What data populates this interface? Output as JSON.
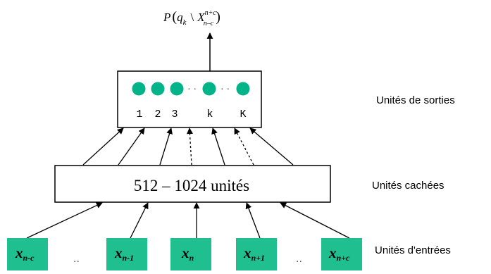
{
  "colors": {
    "node_fill": "#00b388",
    "input_fill": "#1fbf8f",
    "stroke": "#000000",
    "background": "#ffffff"
  },
  "output_probability": {
    "prefix": "P",
    "var": "q",
    "var_sub": "k",
    "sep": "\\",
    "X": "X",
    "X_sup": "n+c",
    "X_sub": "n–c"
  },
  "output_layer": {
    "node_labels": [
      "1",
      "2",
      "3",
      "k",
      "K"
    ],
    "dots": [
      "· ·",
      "· ·"
    ],
    "side_label": "Unités de sorties"
  },
  "hidden_layer": {
    "label": "512 – 1024 unités",
    "side_label": "Unités cachées"
  },
  "input_layer": {
    "inputs": [
      {
        "var": "x",
        "sub": "n-c"
      },
      {
        "var": "x",
        "sub": "n-1"
      },
      {
        "var": "x",
        "sub": "n"
      },
      {
        "var": "x",
        "sub": "n+1"
      },
      {
        "var": "x",
        "sub": "n+c"
      }
    ],
    "ellipses": [
      "..",
      ".."
    ],
    "side_label": "Unités d'entrées"
  }
}
